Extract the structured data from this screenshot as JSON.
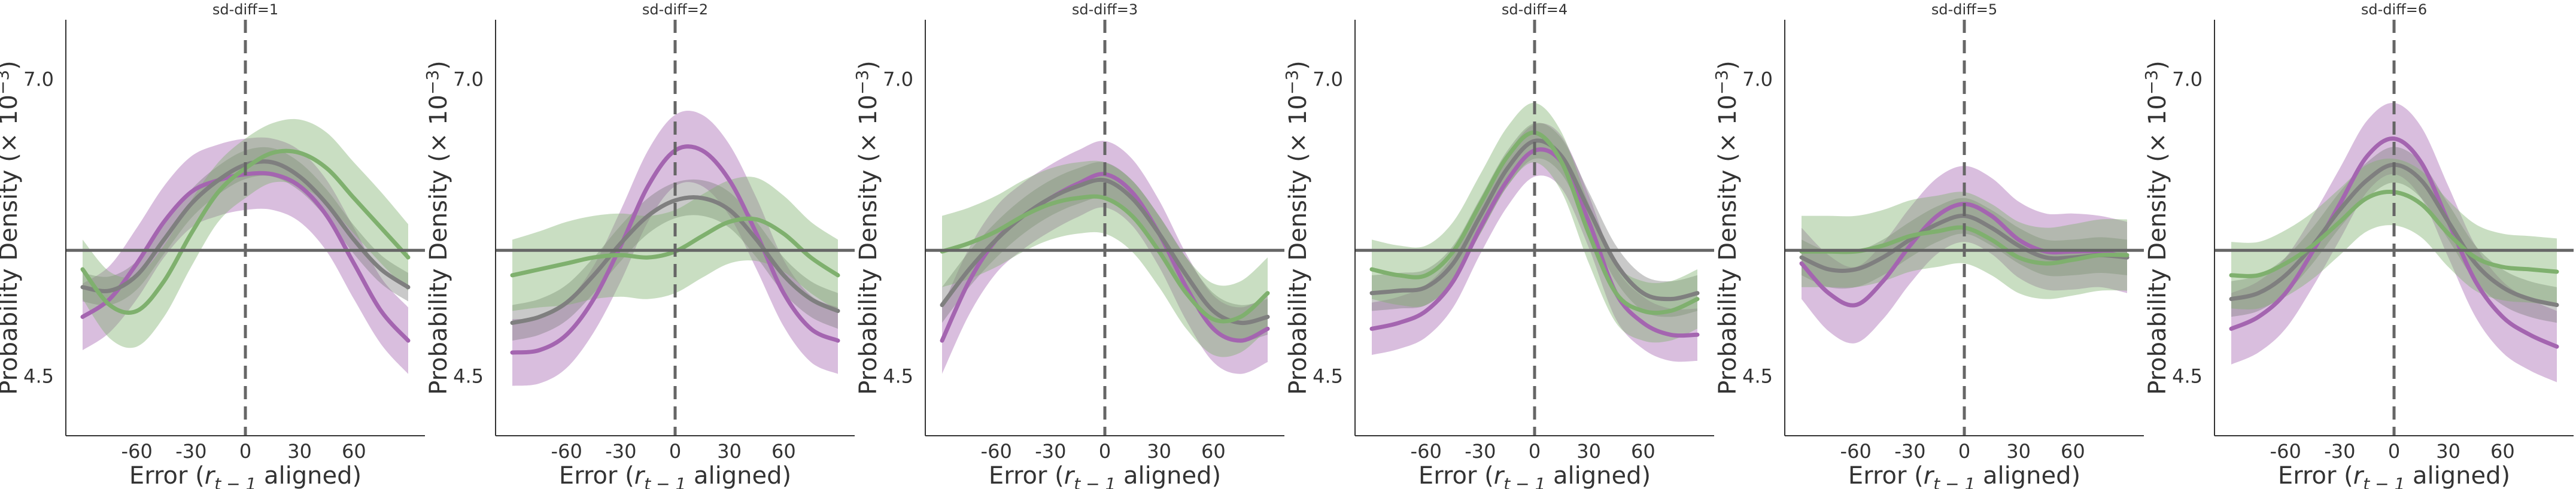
{
  "colors": {
    "purple": "#a465b0",
    "gray": "#7f7f7f",
    "green": "#7fb06e",
    "axis": "#333333",
    "refline": "#666666"
  },
  "axis_labels": {
    "x_main": "Error (",
    "x_var": "r",
    "x_sub": "t − 1",
    "x_tail": " aligned)",
    "y_main": "Probability Density (× 10",
    "y_sup": "−3",
    "y_tail": ")"
  },
  "chart_data": [
    {
      "type": "line",
      "title": "sd-diff=1",
      "xlim": [
        -90,
        90
      ],
      "ylim": [
        4.0,
        7.5
      ],
      "xticks": [
        -60,
        -30,
        0,
        30,
        60
      ],
      "xtick_labels": [
        "-60",
        "-30",
        "0",
        "30",
        "60"
      ],
      "yticks": [
        4.5,
        7.0
      ],
      "ytick_labels": [
        "4.5",
        "7.0"
      ],
      "hline": 5.56,
      "vline": 0,
      "x": [
        -90,
        -75,
        -60,
        -45,
        -30,
        -15,
        0,
        15,
        30,
        45,
        60,
        75,
        90
      ],
      "series": [
        {
          "color": "purple",
          "values": [
            5.0,
            5.15,
            5.45,
            5.8,
            6.05,
            6.15,
            6.2,
            6.2,
            6.1,
            5.85,
            5.45,
            5.05,
            4.8
          ],
          "band": [
            0.28,
            0.28,
            0.3,
            0.3,
            0.3,
            0.3,
            0.3,
            0.3,
            0.3,
            0.3,
            0.3,
            0.28,
            0.28
          ]
        },
        {
          "color": "gray",
          "values": [
            5.25,
            5.22,
            5.35,
            5.65,
            5.95,
            6.15,
            6.28,
            6.3,
            6.18,
            5.95,
            5.65,
            5.4,
            5.25
          ],
          "band": [
            0.12,
            0.12,
            0.12,
            0.12,
            0.12,
            0.12,
            0.12,
            0.12,
            0.12,
            0.12,
            0.12,
            0.12,
            0.12
          ]
        },
        {
          "color": "green",
          "values": [
            5.4,
            5.1,
            5.05,
            5.3,
            5.7,
            6.05,
            6.25,
            6.38,
            6.38,
            6.25,
            6.0,
            5.75,
            5.5
          ],
          "band": [
            0.25,
            0.28,
            0.3,
            0.3,
            0.28,
            0.25,
            0.25,
            0.25,
            0.28,
            0.3,
            0.3,
            0.3,
            0.28
          ]
        }
      ]
    },
    {
      "type": "line",
      "title": "sd-diff=2",
      "xlim": [
        -90,
        90
      ],
      "ylim": [
        4.0,
        7.5
      ],
      "xticks": [
        -60,
        -30,
        0,
        30,
        60
      ],
      "xtick_labels": [
        "-60",
        "-30",
        "0",
        "30",
        "60"
      ],
      "yticks": [
        4.5,
        7.0
      ],
      "ytick_labels": [
        "4.5",
        "7.0"
      ],
      "hline": 5.56,
      "vline": 0,
      "x": [
        -90,
        -75,
        -60,
        -45,
        -30,
        -15,
        0,
        15,
        30,
        45,
        60,
        75,
        90
      ],
      "series": [
        {
          "color": "purple",
          "values": [
            4.7,
            4.72,
            4.85,
            5.15,
            5.6,
            6.1,
            6.4,
            6.4,
            6.15,
            5.7,
            5.2,
            4.9,
            4.8
          ],
          "band": [
            0.28,
            0.28,
            0.28,
            0.28,
            0.3,
            0.3,
            0.3,
            0.3,
            0.3,
            0.3,
            0.28,
            0.28,
            0.28
          ]
        },
        {
          "color": "gray",
          "values": [
            4.95,
            5.0,
            5.12,
            5.35,
            5.62,
            5.85,
            5.98,
            6.0,
            5.9,
            5.65,
            5.35,
            5.15,
            5.05
          ],
          "band": [
            0.15,
            0.15,
            0.15,
            0.15,
            0.15,
            0.15,
            0.15,
            0.15,
            0.15,
            0.15,
            0.15,
            0.15,
            0.15
          ]
        },
        {
          "color": "green",
          "values": [
            5.35,
            5.4,
            5.45,
            5.5,
            5.52,
            5.5,
            5.55,
            5.68,
            5.8,
            5.82,
            5.7,
            5.5,
            5.35
          ],
          "band": [
            0.3,
            0.32,
            0.35,
            0.35,
            0.35,
            0.35,
            0.35,
            0.35,
            0.35,
            0.35,
            0.32,
            0.3,
            0.3
          ]
        }
      ]
    },
    {
      "type": "line",
      "title": "sd-diff=3",
      "xlim": [
        -90,
        90
      ],
      "ylim": [
        4.0,
        7.5
      ],
      "xticks": [
        -60,
        -30,
        0,
        30,
        60
      ],
      "xtick_labels": [
        "-60",
        "-30",
        "0",
        "30",
        "60"
      ],
      "yticks": [
        4.5,
        7.0
      ],
      "ytick_labels": [
        "4.5",
        "7.0"
      ],
      "hline": 5.56,
      "vline": 0,
      "x": [
        -90,
        -75,
        -60,
        -45,
        -30,
        -15,
        0,
        15,
        30,
        45,
        60,
        75,
        90
      ],
      "series": [
        {
          "color": "purple",
          "values": [
            4.8,
            5.3,
            5.65,
            5.85,
            6.0,
            6.12,
            6.2,
            6.05,
            5.7,
            5.25,
            4.9,
            4.8,
            4.9
          ],
          "band": [
            0.28,
            0.28,
            0.28,
            0.28,
            0.28,
            0.28,
            0.28,
            0.28,
            0.28,
            0.28,
            0.28,
            0.28,
            0.28
          ]
        },
        {
          "color": "gray",
          "values": [
            5.1,
            5.4,
            5.65,
            5.85,
            6.0,
            6.1,
            6.15,
            6.0,
            5.7,
            5.35,
            5.05,
            4.95,
            5.0
          ],
          "band": [
            0.15,
            0.15,
            0.15,
            0.15,
            0.15,
            0.15,
            0.15,
            0.15,
            0.15,
            0.15,
            0.15,
            0.15,
            0.15
          ]
        },
        {
          "color": "green",
          "values": [
            5.55,
            5.62,
            5.72,
            5.85,
            5.95,
            6.0,
            6.0,
            5.85,
            5.55,
            5.2,
            4.98,
            5.0,
            5.2
          ],
          "band": [
            0.3,
            0.3,
            0.3,
            0.3,
            0.3,
            0.3,
            0.3,
            0.3,
            0.3,
            0.3,
            0.3,
            0.3,
            0.3
          ]
        }
      ]
    },
    {
      "type": "line",
      "title": "sd-diff=4",
      "xlim": [
        -90,
        90
      ],
      "ylim": [
        4.0,
        7.5
      ],
      "xticks": [
        -60,
        -30,
        0,
        30,
        60
      ],
      "xtick_labels": [
        "-60",
        "-30",
        "0",
        "30",
        "60"
      ],
      "yticks": [
        4.5,
        7.0
      ],
      "ytick_labels": [
        "4.5",
        "7.0"
      ],
      "hline": 5.56,
      "vline": 0,
      "x": [
        -90,
        -75,
        -60,
        -45,
        -30,
        -15,
        0,
        15,
        30,
        45,
        60,
        75,
        90
      ],
      "series": [
        {
          "color": "purple",
          "values": [
            4.9,
            4.95,
            5.05,
            5.3,
            5.75,
            6.15,
            6.4,
            6.3,
            5.8,
            5.2,
            4.95,
            4.85,
            4.85
          ],
          "band": [
            0.22,
            0.22,
            0.22,
            0.22,
            0.22,
            0.22,
            0.22,
            0.22,
            0.22,
            0.22,
            0.22,
            0.22,
            0.22
          ]
        },
        {
          "color": "gray",
          "values": [
            5.2,
            5.22,
            5.25,
            5.45,
            5.85,
            6.25,
            6.48,
            6.35,
            5.9,
            5.45,
            5.2,
            5.15,
            5.2
          ],
          "band": [
            0.15,
            0.15,
            0.15,
            0.15,
            0.15,
            0.15,
            0.15,
            0.15,
            0.15,
            0.15,
            0.15,
            0.15,
            0.15
          ]
        },
        {
          "color": "green",
          "values": [
            5.4,
            5.35,
            5.35,
            5.55,
            5.95,
            6.35,
            6.55,
            6.3,
            5.7,
            5.2,
            5.05,
            5.05,
            5.15
          ],
          "band": [
            0.25,
            0.25,
            0.25,
            0.25,
            0.25,
            0.25,
            0.25,
            0.25,
            0.25,
            0.25,
            0.25,
            0.25,
            0.25
          ]
        }
      ]
    },
    {
      "type": "line",
      "title": "sd-diff=5",
      "xlim": [
        -90,
        90
      ],
      "ylim": [
        4.0,
        7.5
      ],
      "xticks": [
        -60,
        -30,
        0,
        30,
        60
      ],
      "xtick_labels": [
        "-60",
        "-30",
        "0",
        "30",
        "60"
      ],
      "yticks": [
        4.5,
        7.0
      ],
      "ytick_labels": [
        "4.5",
        "7.0"
      ],
      "hline": 5.56,
      "vline": 0,
      "x": [
        -90,
        -75,
        -60,
        -45,
        -30,
        -15,
        0,
        15,
        30,
        45,
        60,
        75,
        90
      ],
      "series": [
        {
          "color": "purple",
          "values": [
            5.45,
            5.2,
            5.1,
            5.3,
            5.6,
            5.85,
            5.95,
            5.85,
            5.65,
            5.55,
            5.55,
            5.55,
            5.5
          ],
          "band": [
            0.3,
            0.32,
            0.32,
            0.32,
            0.32,
            0.32,
            0.32,
            0.32,
            0.32,
            0.32,
            0.32,
            0.3,
            0.3
          ]
        },
        {
          "color": "gray",
          "values": [
            5.5,
            5.4,
            5.4,
            5.5,
            5.65,
            5.78,
            5.85,
            5.75,
            5.6,
            5.5,
            5.5,
            5.52,
            5.5
          ],
          "band": [
            0.15,
            0.15,
            0.15,
            0.15,
            0.15,
            0.15,
            0.15,
            0.15,
            0.15,
            0.15,
            0.15,
            0.15,
            0.15
          ]
        },
        {
          "color": "green",
          "values": [
            5.55,
            5.55,
            5.55,
            5.6,
            5.68,
            5.72,
            5.75,
            5.65,
            5.5,
            5.45,
            5.48,
            5.52,
            5.52
          ],
          "band": [
            0.3,
            0.3,
            0.3,
            0.3,
            0.3,
            0.3,
            0.3,
            0.3,
            0.3,
            0.3,
            0.3,
            0.3,
            0.3
          ]
        }
      ]
    },
    {
      "type": "line",
      "title": "sd-diff=6",
      "xlim": [
        -90,
        90
      ],
      "ylim": [
        4.0,
        7.5
      ],
      "xticks": [
        -60,
        -30,
        0,
        30,
        60
      ],
      "xtick_labels": [
        "-60",
        "-30",
        "0",
        "30",
        "60"
      ],
      "yticks": [
        4.5,
        7.0
      ],
      "ytick_labels": [
        "4.5",
        "7.0"
      ],
      "hline": 5.56,
      "vline": 0,
      "x": [
        -90,
        -75,
        -60,
        -45,
        -30,
        -15,
        0,
        15,
        30,
        45,
        60,
        75,
        90
      ],
      "series": [
        {
          "color": "purple",
          "values": [
            4.9,
            5.0,
            5.2,
            5.55,
            5.95,
            6.35,
            6.5,
            6.3,
            5.8,
            5.3,
            5.0,
            4.85,
            4.75
          ],
          "band": [
            0.3,
            0.3,
            0.3,
            0.3,
            0.3,
            0.3,
            0.3,
            0.3,
            0.3,
            0.3,
            0.3,
            0.3,
            0.3
          ]
        },
        {
          "color": "gray",
          "values": [
            5.15,
            5.2,
            5.35,
            5.6,
            5.9,
            6.15,
            6.28,
            6.15,
            5.8,
            5.45,
            5.25,
            5.15,
            5.1
          ],
          "band": [
            0.15,
            0.15,
            0.15,
            0.15,
            0.15,
            0.15,
            0.15,
            0.15,
            0.15,
            0.15,
            0.15,
            0.15,
            0.15
          ]
        },
        {
          "color": "green",
          "values": [
            5.35,
            5.35,
            5.45,
            5.6,
            5.8,
            6.0,
            6.05,
            5.95,
            5.7,
            5.5,
            5.42,
            5.4,
            5.38
          ],
          "band": [
            0.28,
            0.28,
            0.28,
            0.28,
            0.28,
            0.28,
            0.28,
            0.28,
            0.28,
            0.28,
            0.28,
            0.28,
            0.28
          ]
        }
      ]
    }
  ]
}
